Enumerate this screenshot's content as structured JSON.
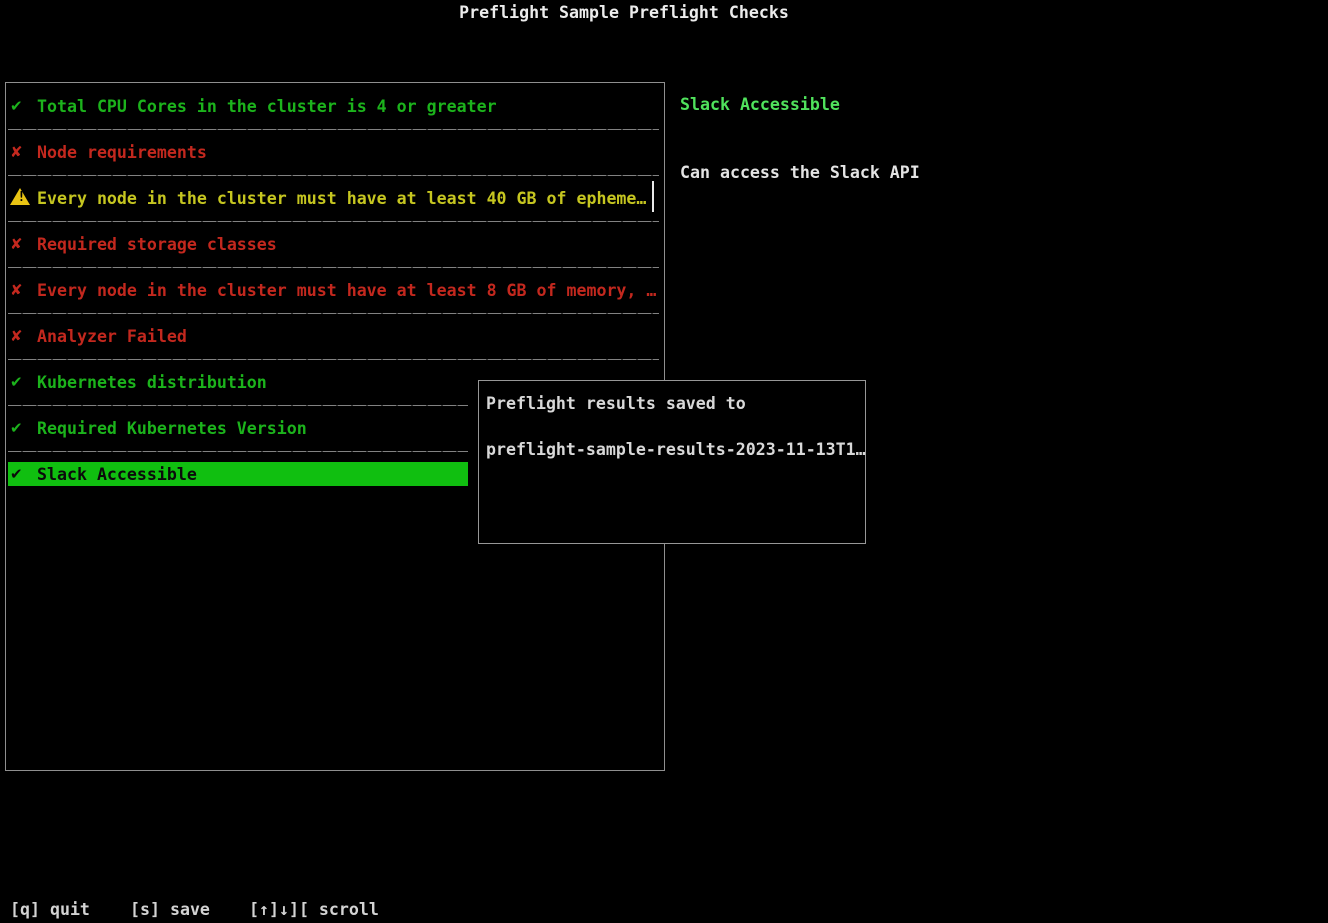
{
  "app": {
    "title": "Preflight Sample Preflight Checks"
  },
  "icons": {
    "pass": "✔",
    "fail": "✘",
    "warn": "⚠"
  },
  "colors": {
    "pass_green": "#1cb31c",
    "fail_red": "#c3281e",
    "warn_yellow": "#c6c620",
    "warn_triangle": "#e9c414",
    "selected_bg": "#10bf10",
    "detail_title_green": "#50e25c",
    "text_white": "#ececec",
    "border_gray": "#8f8f8f"
  },
  "checks": {
    "items": [
      {
        "icon": "✔",
        "status": "pass",
        "selected": false,
        "label": "Total CPU Cores in the cluster is 4 or greater"
      },
      {
        "icon": "✘",
        "status": "fail",
        "selected": false,
        "label": "Node requirements"
      },
      {
        "icon": "⚠",
        "status": "warn",
        "selected": false,
        "label": "Every node in the cluster must have at least 40 GB of epheme…"
      },
      {
        "icon": "✘",
        "status": "fail",
        "selected": false,
        "label": "Required storage classes"
      },
      {
        "icon": "✘",
        "status": "fail",
        "selected": false,
        "label": "Every node in the cluster must have at least 8 GB of memory, …"
      },
      {
        "icon": "✘",
        "status": "fail",
        "selected": false,
        "label": "Analyzer Failed"
      },
      {
        "icon": "✔",
        "status": "pass",
        "selected": false,
        "label": "Kubernetes distribution"
      },
      {
        "icon": "✔",
        "status": "pass",
        "selected": false,
        "label": "Required Kubernetes Version"
      },
      {
        "icon": "✔",
        "status": "pass",
        "selected": true,
        "label": "Slack Accessible"
      }
    ]
  },
  "detail": {
    "title": "Slack Accessible",
    "message": "Can access the Slack API"
  },
  "modal": {
    "line1": "Preflight results saved to",
    "line2": "preflight-sample-results-2023-11-13T1…"
  },
  "footer": {
    "quit": "[q] quit",
    "save": "[s] save",
    "scroll": "[↑]↓][ scroll"
  }
}
